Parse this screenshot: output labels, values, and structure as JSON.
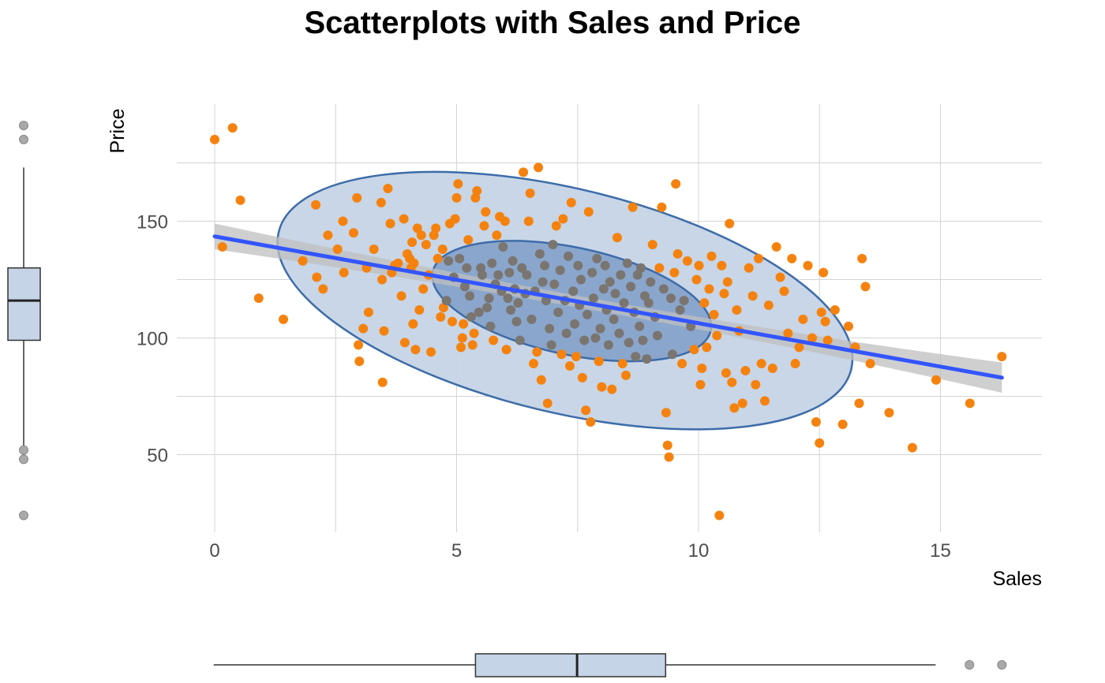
{
  "chart_data": {
    "type": "scatter",
    "title": "Scatterplots with Sales and Price",
    "xlabel": "Sales",
    "ylabel": "Price",
    "xlim": [
      -1.5,
      17.0
    ],
    "ylim": [
      17.5,
      197.5
    ],
    "x_ticks": [
      0,
      5,
      10,
      15
    ],
    "y_ticks": [
      50,
      100,
      150
    ],
    "x_minor_ticks": [
      2.5,
      7.5,
      12.5
    ],
    "y_minor_ticks": [
      75,
      125,
      175
    ],
    "grid": true,
    "colors": {
      "points": "#f5820e",
      "points_inside": "#7a7570",
      "ellipse_fill": "#c5d4e6",
      "ellipse_inner_fill": "#7f9ec7",
      "ellipse_stroke": "#3d6ca8",
      "regression_line": "#3355ff",
      "confidence_band": "#bfbfbf",
      "box_fill": "#c5d4e6",
      "grid": "#d4d4d4",
      "outlier": "#a9a9a9"
    },
    "regression": {
      "x_start": 0.0,
      "y_start": 143.5,
      "x_end": 16.27,
      "y_end": 83.0,
      "band_halfwidth_start": 5.5,
      "band_halfwidth_mid": 2.5,
      "band_halfwidth_end": 6.5
    },
    "ellipses": [
      {
        "name": "outer",
        "cx": 7.24,
        "cy": 116.0,
        "rx": 6.2,
        "ry": 38.0,
        "rot_deg": 0,
        "tilt": -0.0
      },
      {
        "name": "inner",
        "cx": 7.38,
        "cy": 115.8,
        "rx": 3.2,
        "ry": 19.5
      }
    ],
    "points": [
      [
        0.0,
        185
      ],
      [
        0.37,
        190
      ],
      [
        0.53,
        159
      ],
      [
        0.16,
        139
      ],
      [
        0.91,
        117
      ],
      [
        1.42,
        108
      ],
      [
        1.82,
        133
      ],
      [
        2.09,
        157
      ],
      [
        2.11,
        126
      ],
      [
        2.24,
        121
      ],
      [
        2.34,
        144
      ],
      [
        2.54,
        138
      ],
      [
        2.65,
        150
      ],
      [
        2.67,
        128
      ],
      [
        2.87,
        145
      ],
      [
        2.94,
        160
      ],
      [
        2.97,
        97
      ],
      [
        2.99,
        90
      ],
      [
        3.07,
        104
      ],
      [
        3.14,
        130
      ],
      [
        3.18,
        111
      ],
      [
        3.29,
        138
      ],
      [
        3.44,
        158
      ],
      [
        3.46,
        125
      ],
      [
        3.47,
        81
      ],
      [
        3.5,
        103
      ],
      [
        3.58,
        164
      ],
      [
        3.63,
        149
      ],
      [
        3.66,
        128
      ],
      [
        3.72,
        131
      ],
      [
        3.79,
        132
      ],
      [
        3.86,
        118
      ],
      [
        3.91,
        151
      ],
      [
        3.93,
        98
      ],
      [
        3.98,
        136
      ],
      [
        4.03,
        134
      ],
      [
        4.06,
        130
      ],
      [
        4.08,
        141
      ],
      [
        4.1,
        106
      ],
      [
        4.12,
        132
      ],
      [
        4.15,
        95
      ],
      [
        4.19,
        147
      ],
      [
        4.23,
        112
      ],
      [
        4.27,
        144
      ],
      [
        4.31,
        121
      ],
      [
        4.37,
        140
      ],
      [
        4.42,
        127
      ],
      [
        4.47,
        94
      ],
      [
        4.53,
        144
      ],
      [
        4.57,
        147
      ],
      [
        4.61,
        134
      ],
      [
        4.67,
        109
      ],
      [
        4.71,
        138
      ],
      [
        4.73,
        113
      ],
      [
        4.79,
        116
      ],
      [
        4.83,
        133
      ],
      [
        4.86,
        149
      ],
      [
        4.91,
        107
      ],
      [
        4.94,
        126
      ],
      [
        4.97,
        151
      ],
      [
        5.0,
        160
      ],
      [
        5.03,
        166
      ],
      [
        5.06,
        134
      ],
      [
        5.09,
        96
      ],
      [
        5.12,
        100
      ],
      [
        5.14,
        106
      ],
      [
        5.17,
        122
      ],
      [
        5.21,
        130
      ],
      [
        5.24,
        142
      ],
      [
        5.27,
        118
      ],
      [
        5.3,
        109
      ],
      [
        5.33,
        97
      ],
      [
        5.36,
        102
      ],
      [
        5.39,
        160
      ],
      [
        5.42,
        163
      ],
      [
        5.46,
        111
      ],
      [
        5.5,
        130
      ],
      [
        5.53,
        127
      ],
      [
        5.57,
        148
      ],
      [
        5.6,
        154
      ],
      [
        5.63,
        113
      ],
      [
        5.67,
        117
      ],
      [
        5.7,
        105
      ],
      [
        5.73,
        132
      ],
      [
        5.76,
        99
      ],
      [
        5.8,
        123
      ],
      [
        5.83,
        144
      ],
      [
        5.86,
        127
      ],
      [
        5.89,
        152
      ],
      [
        5.93,
        120
      ],
      [
        5.96,
        139
      ],
      [
        6.0,
        150
      ],
      [
        6.03,
        95
      ],
      [
        6.06,
        117
      ],
      [
        6.09,
        128
      ],
      [
        6.12,
        112
      ],
      [
        6.16,
        133
      ],
      [
        6.2,
        121
      ],
      [
        6.24,
        107
      ],
      [
        6.27,
        115
      ],
      [
        6.31,
        99
      ],
      [
        6.35,
        130
      ],
      [
        6.38,
        171
      ],
      [
        6.42,
        119
      ],
      [
        6.45,
        127
      ],
      [
        6.49,
        150
      ],
      [
        6.52,
        162
      ],
      [
        6.55,
        108
      ],
      [
        6.59,
        89
      ],
      [
        6.62,
        120
      ],
      [
        6.66,
        94
      ],
      [
        6.69,
        173
      ],
      [
        6.72,
        136
      ],
      [
        6.75,
        82
      ],
      [
        6.78,
        124
      ],
      [
        6.82,
        131
      ],
      [
        6.85,
        116
      ],
      [
        6.88,
        72
      ],
      [
        6.92,
        104
      ],
      [
        6.96,
        97
      ],
      [
        6.99,
        140
      ],
      [
        7.02,
        123
      ],
      [
        7.06,
        148
      ],
      [
        7.1,
        111
      ],
      [
        7.14,
        129
      ],
      [
        7.17,
        93
      ],
      [
        7.2,
        151
      ],
      [
        7.24,
        116
      ],
      [
        7.27,
        102
      ],
      [
        7.31,
        135
      ],
      [
        7.34,
        88
      ],
      [
        7.37,
        158
      ],
      [
        7.41,
        120
      ],
      [
        7.44,
        106
      ],
      [
        7.47,
        92
      ],
      [
        7.51,
        131
      ],
      [
        7.54,
        114
      ],
      [
        7.57,
        125
      ],
      [
        7.6,
        83
      ],
      [
        7.64,
        99
      ],
      [
        7.67,
        69
      ],
      [
        7.7,
        110
      ],
      [
        7.73,
        154
      ],
      [
        7.77,
        64
      ],
      [
        7.8,
        128
      ],
      [
        7.83,
        117
      ],
      [
        7.87,
        100
      ],
      [
        7.9,
        134
      ],
      [
        7.94,
        90
      ],
      [
        7.97,
        104
      ],
      [
        8.0,
        79
      ],
      [
        8.04,
        121
      ],
      [
        8.07,
        131
      ],
      [
        8.1,
        112
      ],
      [
        8.14,
        97
      ],
      [
        8.17,
        124
      ],
      [
        8.21,
        78
      ],
      [
        8.25,
        108
      ],
      [
        8.28,
        119
      ],
      [
        8.32,
        143
      ],
      [
        8.36,
        102
      ],
      [
        8.39,
        127
      ],
      [
        8.43,
        89
      ],
      [
        8.46,
        115
      ],
      [
        8.5,
        84
      ],
      [
        8.53,
        132
      ],
      [
        8.56,
        98
      ],
      [
        8.6,
        122
      ],
      [
        8.64,
        156
      ],
      [
        8.67,
        111
      ],
      [
        8.7,
        92
      ],
      [
        8.74,
        127
      ],
      [
        8.78,
        105
      ],
      [
        8.81,
        130
      ],
      [
        8.85,
        99
      ],
      [
        8.89,
        118
      ],
      [
        8.93,
        91
      ],
      [
        8.97,
        115
      ],
      [
        9.01,
        124
      ],
      [
        9.05,
        140
      ],
      [
        9.1,
        109
      ],
      [
        9.15,
        101
      ],
      [
        9.19,
        130
      ],
      [
        9.24,
        156
      ],
      [
        9.28,
        121
      ],
      [
        9.33,
        68
      ],
      [
        9.36,
        54
      ],
      [
        9.39,
        49
      ],
      [
        9.43,
        117
      ],
      [
        9.46,
        93
      ],
      [
        9.5,
        128
      ],
      [
        9.53,
        166
      ],
      [
        9.57,
        136
      ],
      [
        9.62,
        112
      ],
      [
        9.66,
        89
      ],
      [
        9.7,
        116
      ],
      [
        9.77,
        133
      ],
      [
        9.84,
        105
      ],
      [
        9.91,
        95
      ],
      [
        9.96,
        125
      ],
      [
        10.01,
        131
      ],
      [
        10.04,
        80
      ],
      [
        10.07,
        87
      ],
      [
        10.12,
        115
      ],
      [
        10.17,
        96
      ],
      [
        10.22,
        121
      ],
      [
        10.27,
        135
      ],
      [
        10.32,
        110
      ],
      [
        10.38,
        101
      ],
      [
        10.43,
        24
      ],
      [
        10.48,
        131
      ],
      [
        10.53,
        119
      ],
      [
        10.57,
        85
      ],
      [
        10.6,
        124
      ],
      [
        10.64,
        149
      ],
      [
        10.69,
        81
      ],
      [
        10.74,
        70
      ],
      [
        10.79,
        112
      ],
      [
        10.84,
        103
      ],
      [
        10.91,
        72
      ],
      [
        10.97,
        86
      ],
      [
        11.04,
        130
      ],
      [
        11.12,
        118
      ],
      [
        11.18,
        80
      ],
      [
        11.24,
        134
      ],
      [
        11.3,
        89
      ],
      [
        11.37,
        73
      ],
      [
        11.45,
        114
      ],
      [
        11.53,
        87
      ],
      [
        11.61,
        139
      ],
      [
        11.69,
        126
      ],
      [
        11.77,
        120
      ],
      [
        11.85,
        102
      ],
      [
        11.93,
        134
      ],
      [
        12.0,
        89
      ],
      [
        12.08,
        96
      ],
      [
        12.16,
        108
      ],
      [
        12.26,
        131
      ],
      [
        12.35,
        100
      ],
      [
        12.43,
        64
      ],
      [
        12.5,
        55
      ],
      [
        12.54,
        111
      ],
      [
        12.58,
        128
      ],
      [
        12.62,
        107
      ],
      [
        12.67,
        99
      ],
      [
        12.82,
        112
      ],
      [
        12.98,
        63
      ],
      [
        13.1,
        105
      ],
      [
        13.24,
        96
      ],
      [
        13.32,
        72
      ],
      [
        13.38,
        134
      ],
      [
        13.45,
        122
      ],
      [
        13.55,
        89
      ],
      [
        13.94,
        68
      ],
      [
        14.42,
        53
      ],
      [
        14.91,
        82
      ],
      [
        15.61,
        72
      ],
      [
        16.27,
        92
      ]
    ],
    "boxplot_y": {
      "min": 52.0,
      "q1": 99.0,
      "median": 116.0,
      "q3": 130.0,
      "max": 173.0,
      "outliers": [
        191,
        185,
        52,
        48,
        24
      ]
    },
    "boxplot_x": {
      "min": -0.02,
      "q1": 5.39,
      "median": 7.49,
      "q3": 9.32,
      "max": 14.9,
      "outliers": [
        15.6,
        16.27
      ]
    }
  }
}
